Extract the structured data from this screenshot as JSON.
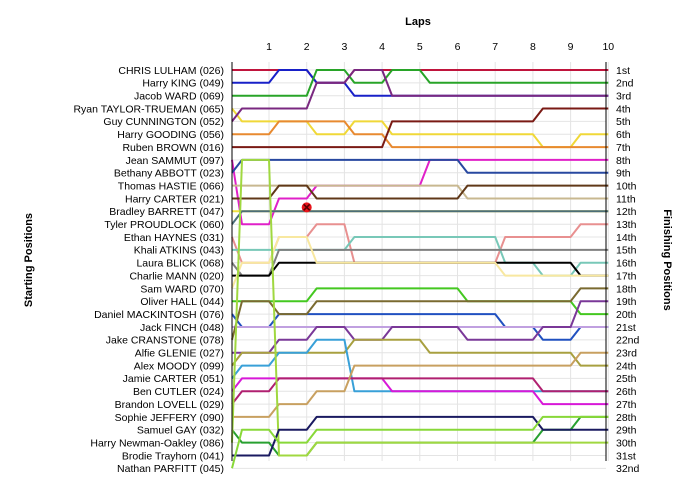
{
  "chart_data": {
    "type": "line",
    "title": "",
    "xlabel": "Laps",
    "ylabel_left": "Starting Positions",
    "ylabel_right": "Finishing Positions",
    "x": [
      0,
      1,
      2,
      3,
      4,
      5,
      6,
      7,
      8,
      9,
      10
    ],
    "x_tick_labels": [
      "1",
      "2",
      "3",
      "4",
      "5",
      "6",
      "7",
      "8",
      "9",
      "10"
    ],
    "y_inverted": true,
    "ylim": [
      1,
      32
    ],
    "grid": true,
    "finishing_labels": [
      "1st",
      "2nd",
      "3rd",
      "4th",
      "5th",
      "6th",
      "7th",
      "8th",
      "9th",
      "10th",
      "11th",
      "12th",
      "13th",
      "14th",
      "15th",
      "16th",
      "17th",
      "18th",
      "19th",
      "20th",
      "21st",
      "22nd",
      "23rd",
      "24th",
      "25th",
      "26th",
      "27th",
      "28th",
      "29th",
      "30th",
      "31st",
      "32nd"
    ],
    "annotations": [
      {
        "type": "x-marker",
        "lap": 2,
        "position": 12,
        "color": "#e8141b"
      }
    ],
    "series": [
      {
        "name": "CHRIS LULHAM (026)",
        "color": "#c0143c",
        "positions": [
          1,
          1,
          1,
          2,
          1,
          1,
          1,
          1,
          1,
          1,
          1
        ]
      },
      {
        "name": "Harry KING (049)",
        "color": "#1820c8",
        "positions": [
          2,
          2,
          1,
          2,
          3,
          3,
          3,
          3,
          3,
          3,
          3
        ]
      },
      {
        "name": "Jacob WARD (069)",
        "color": "#28a428",
        "positions": [
          3,
          3,
          3,
          1,
          2,
          1,
          2,
          2,
          2,
          2,
          2
        ]
      },
      {
        "name": "Ryan TAYLOR-TRUEMAN (065)",
        "color": "#f0d838",
        "positions": [
          4,
          5,
          5,
          6,
          5,
          6,
          6,
          6,
          6,
          7,
          6
        ]
      },
      {
        "name": "Guy CUNNINGTON (052)",
        "color": "#7a2880",
        "positions": [
          5,
          4,
          4,
          2,
          1,
          3,
          3,
          3,
          3,
          3,
          3
        ]
      },
      {
        "name": "Harry GOODING (056)",
        "color": "#e88a30",
        "positions": [
          6,
          6,
          5,
          5,
          6,
          7,
          7,
          7,
          7,
          7,
          7
        ]
      },
      {
        "name": "Ruben BROWN (016)",
        "color": "#7a1a14",
        "positions": [
          7,
          7,
          7,
          7,
          7,
          5,
          5,
          5,
          5,
          4,
          4
        ]
      },
      {
        "name": "Jean SAMMUT (097)",
        "color": "#e020c8",
        "positions": [
          8,
          13,
          11,
          10,
          10,
          10,
          8,
          8,
          8,
          8,
          8
        ]
      },
      {
        "name": "Bethany ABBOTT (023)",
        "color": "#2848a0",
        "positions": [
          9,
          8,
          8,
          8,
          8,
          8,
          8,
          9,
          9,
          9,
          9
        ]
      },
      {
        "name": "Thomas HASTIE (066)",
        "color": "#c8b890",
        "positions": [
          10,
          10,
          10,
          10,
          10,
          10,
          10,
          11,
          11,
          11,
          11
        ]
      },
      {
        "name": "Harry CARTER (021)",
        "color": "#603818",
        "positions": [
          11,
          11,
          10,
          11,
          11,
          11,
          11,
          10,
          10,
          10,
          10
        ]
      },
      {
        "name": "Bradley BARRETT (047)",
        "color": "#f0e040",
        "positions": [
          12,
          12,
          12,
          12,
          12,
          12,
          12,
          12,
          12,
          12,
          12
        ]
      },
      {
        "name": "Tyler PROUDLOCK (060)",
        "color": "#4c6e78",
        "positions": [
          13,
          12,
          12,
          12,
          12,
          12,
          12,
          12,
          12,
          12,
          12
        ]
      },
      {
        "name": "Ethan HAYNES (031)",
        "color": "#e89090",
        "positions": [
          14,
          16,
          14,
          13,
          16,
          16,
          16,
          16,
          14,
          14,
          13
        ]
      },
      {
        "name": "Khali ATKINS (043)",
        "color": "#78c8b8",
        "positions": [
          15,
          15,
          15,
          15,
          14,
          14,
          14,
          14,
          16,
          17,
          16
        ]
      },
      {
        "name": "Laura BLICK (068)",
        "color": "#808080",
        "positions": [
          16,
          17,
          15,
          15,
          15,
          15,
          15,
          15,
          15,
          15,
          15
        ]
      },
      {
        "name": "Charlie MANN (020)",
        "color": "#000000",
        "positions": [
          17,
          17,
          16,
          16,
          16,
          16,
          16,
          16,
          16,
          16,
          17
        ]
      },
      {
        "name": "Sam WARD (070)",
        "color": "#f8e8a0",
        "positions": [
          18,
          16,
          14,
          16,
          16,
          16,
          16,
          16,
          17,
          17,
          17
        ]
      },
      {
        "name": "Oliver HALL (044)",
        "color": "#44c820",
        "positions": [
          19,
          19,
          19,
          18,
          18,
          18,
          18,
          19,
          19,
          19,
          20
        ]
      },
      {
        "name": "Daniel MACKINTOSH (076)",
        "color": "#2050c0",
        "positions": [
          20,
          21,
          20,
          20,
          20,
          20,
          20,
          20,
          21,
          22,
          21
        ]
      },
      {
        "name": "Jack FINCH (048)",
        "color": "#c0a0e0",
        "positions": [
          21,
          21,
          21,
          21,
          21,
          21,
          21,
          21,
          21,
          21,
          21
        ]
      },
      {
        "name": "Jake CRANSTONE (078)",
        "color": "#7a6a30",
        "positions": [
          22,
          19,
          20,
          19,
          19,
          19,
          19,
          19,
          19,
          19,
          18
        ]
      },
      {
        "name": "Alfie GLENIE (027)",
        "color": "#7a3898",
        "positions": [
          23,
          23,
          22,
          21,
          22,
          21,
          21,
          22,
          22,
          21,
          19
        ]
      },
      {
        "name": "Alex MOODY (099)",
        "color": "#a8a040",
        "positions": [
          24,
          23,
          23,
          23,
          22,
          22,
          23,
          23,
          23,
          23,
          24
        ]
      },
      {
        "name": "Jamie CARTER (051)",
        "color": "#38a0d8",
        "positions": [
          25,
          24,
          23,
          22,
          26,
          26,
          26,
          26,
          26,
          26,
          26
        ]
      },
      {
        "name": "Ben CUTLER (024)",
        "color": "#d818d8",
        "positions": [
          26,
          25,
          25,
          25,
          25,
          26,
          26,
          26,
          26,
          27,
          27
        ]
      },
      {
        "name": "Brandon LOVELL (029)",
        "color": "#b02070",
        "positions": [
          27,
          26,
          25,
          25,
          25,
          25,
          25,
          25,
          25,
          26,
          26
        ]
      },
      {
        "name": "Sophie JEFFERY (090)",
        "color": "#c8a060",
        "positions": [
          28,
          28,
          27,
          26,
          24,
          24,
          24,
          24,
          24,
          24,
          23
        ]
      },
      {
        "name": "Samuel GAY (032)",
        "color": "#28a030",
        "positions": [
          29,
          30,
          31,
          30,
          30,
          30,
          30,
          30,
          30,
          29,
          28
        ]
      },
      {
        "name": "Harry Newman-Oakley (086)",
        "color": "#a0d840",
        "positions": [
          30,
          8,
          31,
          30,
          30,
          30,
          30,
          30,
          30,
          30,
          30
        ]
      },
      {
        "name": "Brodie Trayhorn (041)",
        "color": "#1a1a60",
        "positions": [
          31,
          31,
          29,
          28,
          28,
          28,
          28,
          28,
          28,
          29,
          29
        ]
      },
      {
        "name": "Nathan PARFITT (045)",
        "color": "#88d838",
        "positions": [
          32,
          29,
          30,
          29,
          29,
          29,
          29,
          29,
          29,
          28,
          28
        ]
      }
    ]
  }
}
